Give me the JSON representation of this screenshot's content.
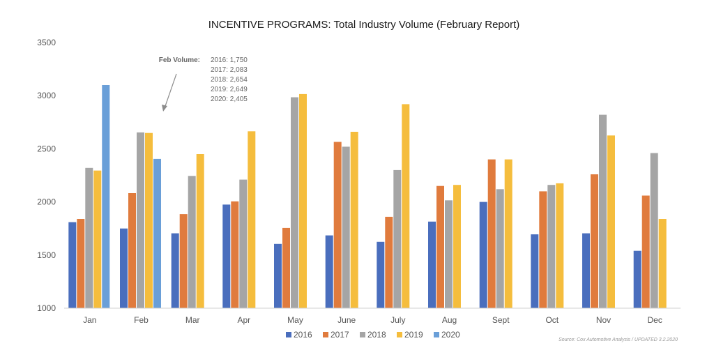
{
  "chart_data": {
    "type": "bar",
    "title": "INCENTIVE PROGRAMS: Total Industry Volume (February Report)",
    "categories": [
      "Jan",
      "Feb",
      "Mar",
      "Apr",
      "May",
      "June",
      "July",
      "Aug",
      "Sept",
      "Oct",
      "Nov",
      "Dec"
    ],
    "series": [
      {
        "name": "2016",
        "color": "#4a6ebd",
        "values": [
          1810,
          1750,
          1705,
          1975,
          1605,
          1685,
          1625,
          1815,
          2000,
          1695,
          1705,
          1540
        ]
      },
      {
        "name": "2017",
        "color": "#e07b3d",
        "values": [
          1840,
          2083,
          1885,
          2005,
          1755,
          2565,
          1860,
          2150,
          2400,
          2100,
          2260,
          2060
        ]
      },
      {
        "name": "2018",
        "color": "#a5a5a5",
        "values": [
          2320,
          2654,
          2245,
          2210,
          2985,
          2520,
          2300,
          2015,
          2120,
          2160,
          2820,
          2460
        ]
      },
      {
        "name": "2019",
        "color": "#f5bd3d",
        "values": [
          2295,
          2649,
          2450,
          2665,
          3015,
          2660,
          2920,
          2160,
          2400,
          2175,
          2625,
          1840
        ]
      },
      {
        "name": "2020",
        "color": "#6a9fd8",
        "values": [
          3100,
          2405,
          null,
          null,
          null,
          null,
          null,
          null,
          null,
          null,
          null,
          null
        ]
      }
    ],
    "ylim": [
      1000,
      3500
    ],
    "yticks": [
      1000,
      1500,
      2000,
      2500,
      3000,
      3500
    ],
    "xlabel": "",
    "ylabel": "",
    "grid": false,
    "legend_position": "bottom",
    "annotation": {
      "label": "Feb Volume:",
      "lines": [
        "2016: 1,750",
        "2017: 2,083",
        "2018: 2,654",
        "2019: 2,649",
        "2020: 2,405"
      ]
    },
    "source": "Source: Cox Automotive Analysis / UPDATED 3.2.2020"
  }
}
